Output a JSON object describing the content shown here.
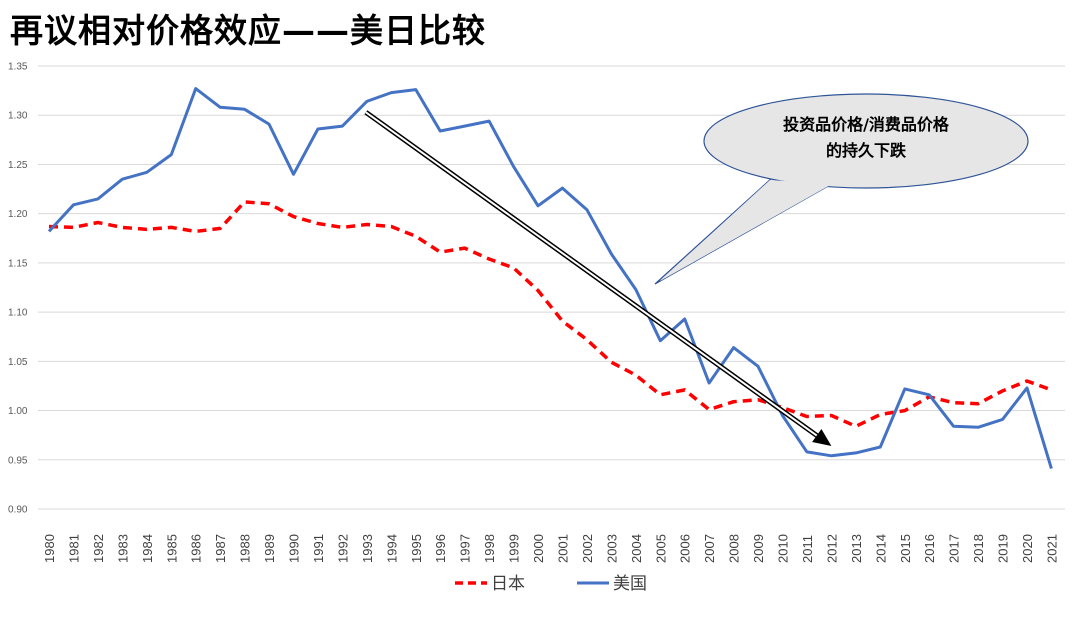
{
  "title": "再议相对价格效应——美日比较",
  "chart_data": {
    "type": "line",
    "title": "再议相对价格效应——美日比较",
    "x": [
      "1980",
      "1981",
      "1982",
      "1983",
      "1984",
      "1985",
      "1986",
      "1987",
      "1988",
      "1989",
      "1990",
      "1991",
      "1992",
      "1993",
      "1994",
      "1995",
      "1996",
      "1997",
      "1998",
      "1999",
      "2000",
      "2001",
      "2002",
      "2003",
      "2004",
      "2005",
      "2006",
      "2007",
      "2008",
      "2009",
      "2010",
      "2011",
      "2012",
      "2013",
      "2014",
      "2015",
      "2016",
      "2017",
      "2018",
      "2019",
      "2020",
      "2021"
    ],
    "ylim": [
      0.9,
      1.35
    ],
    "yticks": [
      "0.90",
      "0.95",
      "1.00",
      "1.05",
      "1.10",
      "1.15",
      "1.20",
      "1.25",
      "1.30",
      "1.35"
    ],
    "grid": true,
    "legend": "bottom",
    "series": [
      {
        "name": "日本",
        "color": "#FF0000",
        "style": "dashed",
        "values": [
          1.187,
          1.186,
          1.191,
          1.186,
          1.184,
          1.186,
          1.182,
          1.185,
          1.212,
          1.21,
          1.197,
          1.19,
          1.186,
          1.189,
          1.187,
          1.177,
          1.161,
          1.165,
          1.154,
          1.145,
          1.122,
          1.091,
          1.072,
          1.049,
          1.036,
          1.016,
          1.021,
          1.001,
          1.009,
          1.011,
          1.003,
          0.994,
          0.995,
          0.984,
          0.996,
          1.0,
          1.014,
          1.008,
          1.007,
          1.02,
          1.03,
          1.021
        ]
      },
      {
        "name": "美国",
        "color": "#4472C4",
        "style": "solid",
        "values": [
          1.182,
          1.209,
          1.215,
          1.235,
          1.242,
          1.26,
          1.327,
          1.308,
          1.306,
          1.291,
          1.24,
          1.286,
          1.289,
          1.314,
          1.323,
          1.326,
          1.284,
          1.289,
          1.294,
          1.248,
          1.208,
          1.226,
          1.204,
          1.159,
          1.123,
          1.071,
          1.093,
          1.028,
          1.064,
          1.045,
          0.995,
          0.958,
          0.954,
          0.957,
          0.963,
          1.022,
          1.016,
          0.984,
          0.983,
          0.991,
          1.023,
          0.941
        ]
      }
    ],
    "annotation": {
      "text_lines": [
        "投资品价格/消费品价格",
        "的持久下跌"
      ],
      "arrow": {
        "from_x": "1993",
        "from_y": 1.303,
        "to_x": "2012",
        "to_y": 0.964
      }
    }
  }
}
